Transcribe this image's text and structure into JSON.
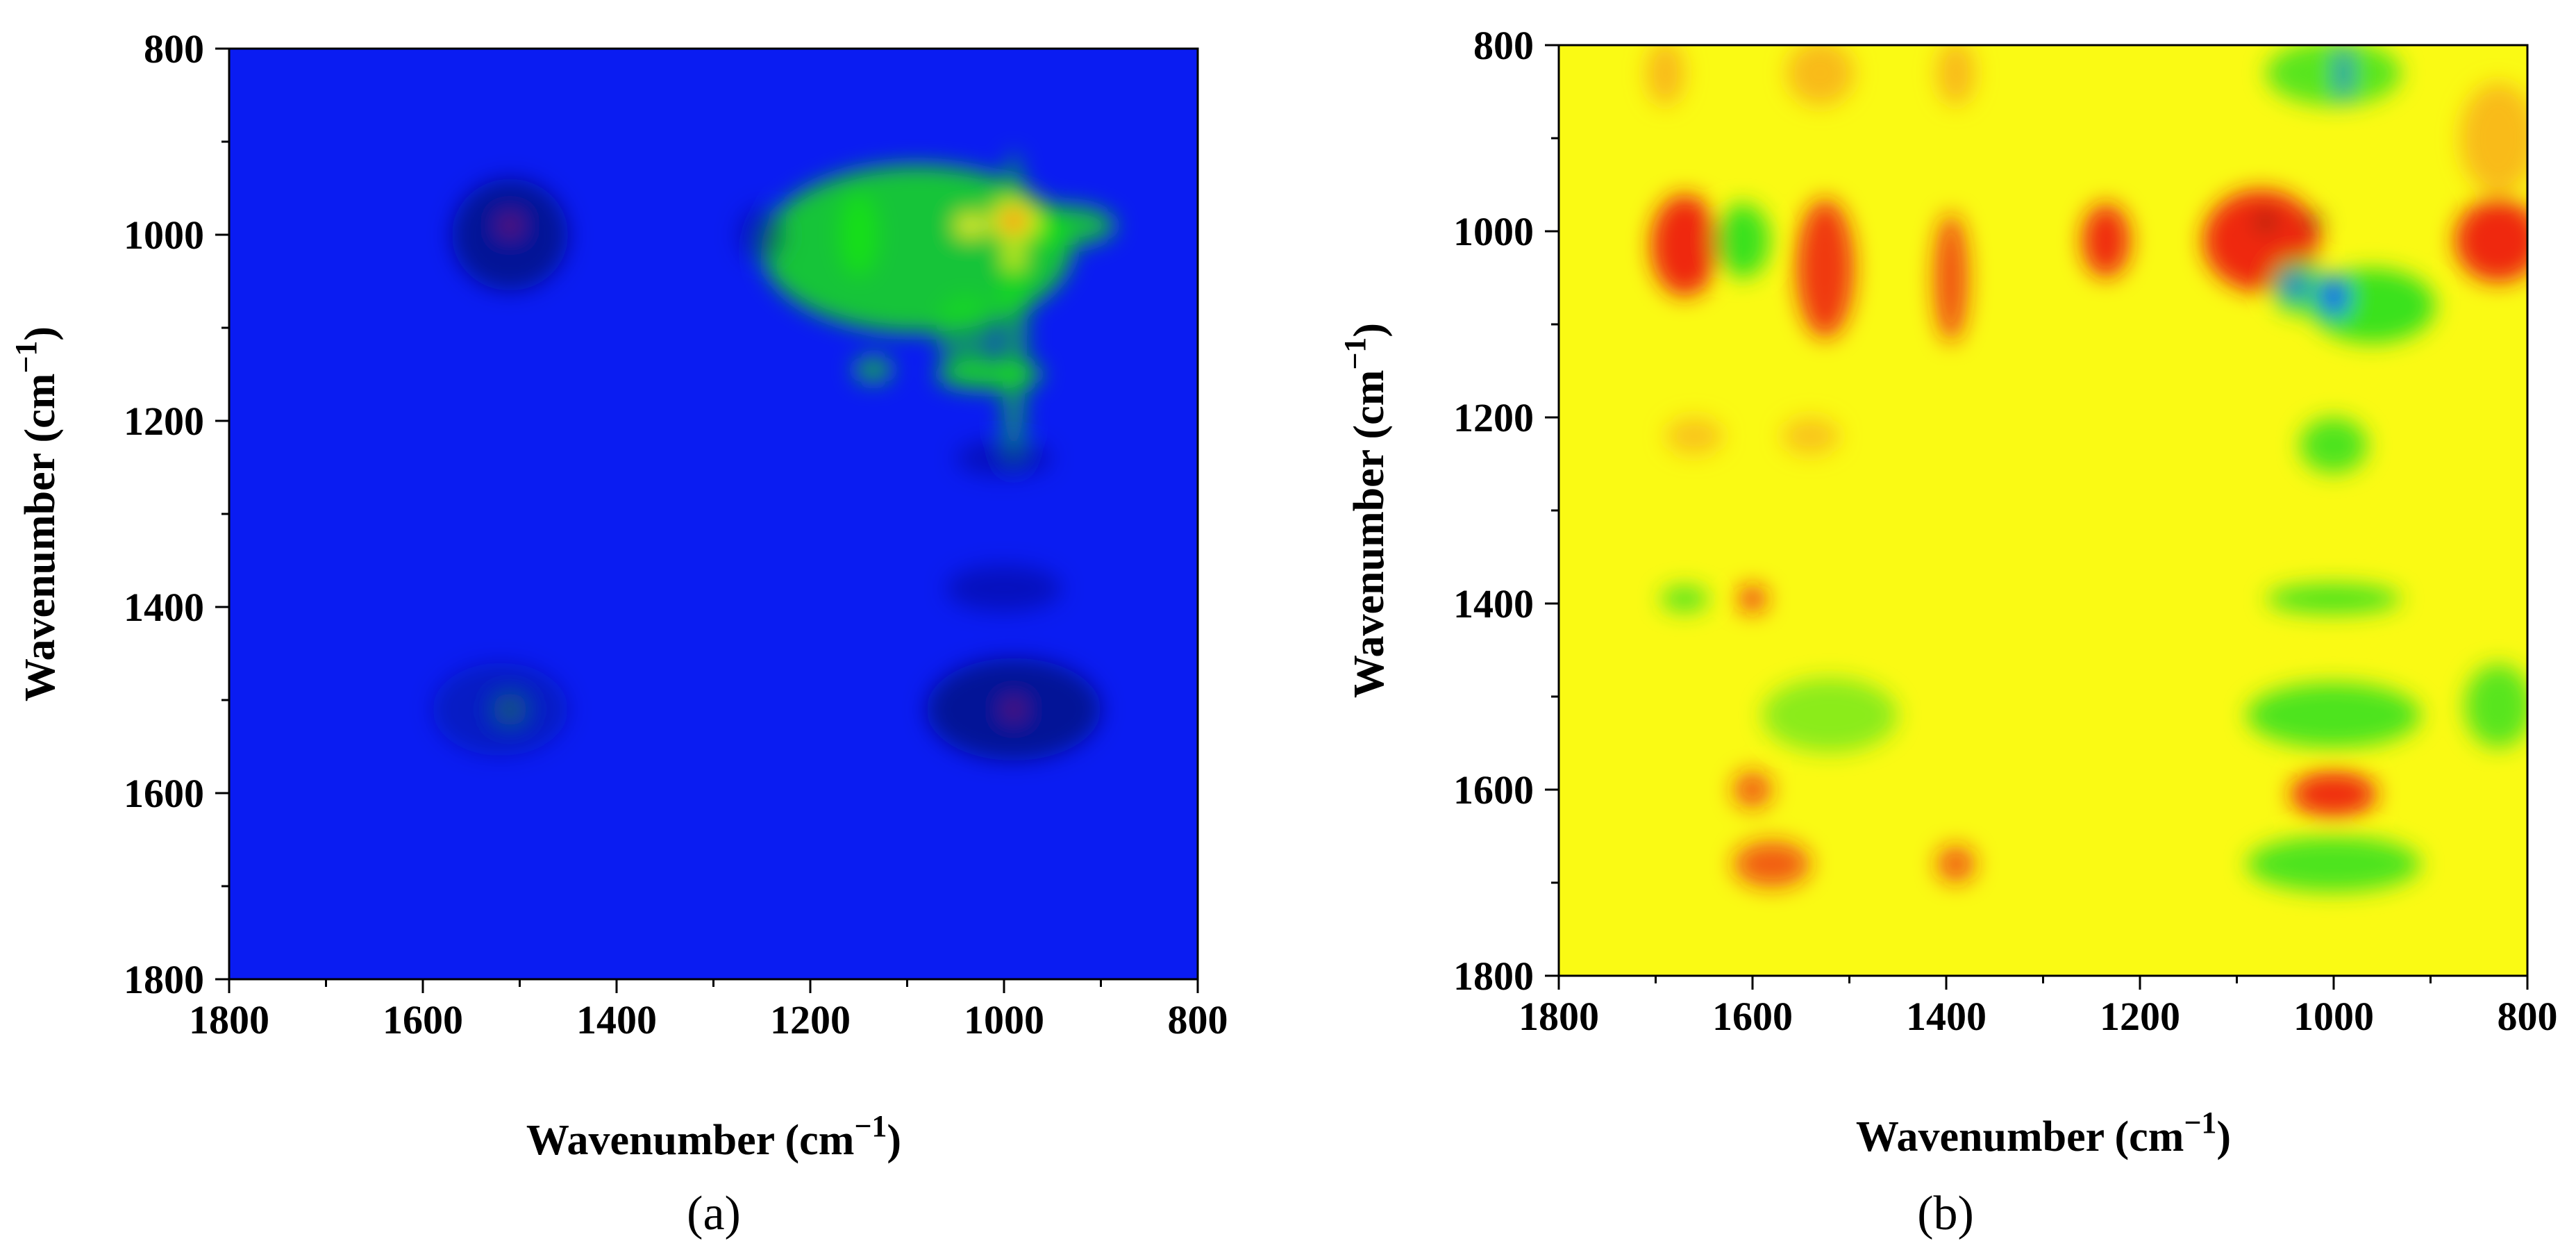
{
  "chart_data": [
    {
      "type": "heatmap",
      "panel_label": "(a)",
      "title": "",
      "xlabel": {
        "text": "Wavenumber (cm",
        "sup": "−1",
        "close": ")"
      },
      "ylabel": {
        "text": "Wavenumber (cm",
        "sup": "−1",
        "close": ")"
      },
      "xlim": [
        1800,
        800
      ],
      "ylim": [
        800,
        1800
      ],
      "y_inverted": true,
      "xticks": [
        1800,
        1600,
        1400,
        1200,
        1000,
        800
      ],
      "yticks": [
        800,
        1000,
        1200,
        1400,
        1600,
        1800
      ],
      "background_color": "#0a1cf2",
      "colors": {
        "background": "#0a1cf2",
        "dark": "#061070",
        "green": "#18e218",
        "yellow": "#f6f31a",
        "red": "#ee1111"
      },
      "features": [
        {
          "x": 1090,
          "y": 1015,
          "wx": 160,
          "wy": 90,
          "color": "#18e218",
          "opacity": 0.85
        },
        {
          "x": 1150,
          "y": 1000,
          "wx": 20,
          "wy": 45,
          "color": "#18e218",
          "opacity": 0.9
        },
        {
          "x": 940,
          "y": 990,
          "wx": 55,
          "wy": 22,
          "color": "#18e218",
          "opacity": 0.8
        },
        {
          "x": 990,
          "y": 1080,
          "wx": 14,
          "wy": 170,
          "color": "#18e218",
          "opacity": 0.6
        },
        {
          "x": 1015,
          "y": 1150,
          "wx": 55,
          "wy": 16,
          "color": "#18e218",
          "opacity": 0.9
        },
        {
          "x": 1135,
          "y": 1145,
          "wx": 20,
          "wy": 14,
          "color": "#18e218",
          "opacity": 0.7
        },
        {
          "x": 1040,
          "y": 1105,
          "wx": 30,
          "wy": 40,
          "color": "#18e218",
          "opacity": 0.55
        },
        {
          "x": 1035,
          "y": 990,
          "wx": 15,
          "wy": 12,
          "color": "#f6f31a",
          "opacity": 1
        },
        {
          "x": 990,
          "y": 985,
          "wx": 24,
          "wy": 22,
          "color": "#f6f31a",
          "opacity": 1
        },
        {
          "x": 990,
          "y": 1025,
          "wx": 10,
          "wy": 10,
          "color": "#f6f31a",
          "opacity": 1
        },
        {
          "x": 990,
          "y": 985,
          "wx": 11,
          "wy": 11,
          "color": "#ee1111",
          "opacity": 1
        },
        {
          "x": 1510,
          "y": 1000,
          "wx": 60,
          "wy": 60,
          "color": "#061070",
          "opacity": 0.7
        },
        {
          "x": 1510,
          "y": 990,
          "wx": 10,
          "wy": 10,
          "color": "#ee1111",
          "opacity": 0.45
        },
        {
          "x": 1510,
          "y": 1510,
          "wx": 18,
          "wy": 18,
          "color": "#18e218",
          "opacity": 0.45
        },
        {
          "x": 990,
          "y": 1510,
          "wx": 90,
          "wy": 55,
          "color": "#061070",
          "opacity": 0.7
        },
        {
          "x": 990,
          "y": 1510,
          "wx": 10,
          "wy": 10,
          "color": "#ee1111",
          "opacity": 0.4
        },
        {
          "x": 1520,
          "y": 1510,
          "wx": 70,
          "wy": 50,
          "color": "#061070",
          "opacity": 0.35
        },
        {
          "x": 1250,
          "y": 1000,
          "wx": 25,
          "wy": 30,
          "color": "#061070",
          "opacity": 0.4
        },
        {
          "x": 1000,
          "y": 1380,
          "wx": 60,
          "wy": 25,
          "color": "#061070",
          "opacity": 0.4
        },
        {
          "x": 1000,
          "y": 1240,
          "wx": 50,
          "wy": 20,
          "color": "#061070",
          "opacity": 0.4
        }
      ]
    },
    {
      "type": "heatmap",
      "panel_label": "(b)",
      "title": "",
      "xlabel": {
        "text": "Wavenumber (cm",
        "sup": "−1",
        "close": ")"
      },
      "ylabel": {
        "text": "Wavenumber (cm",
        "sup": "−1",
        "close": ")"
      },
      "xlim": [
        1800,
        800
      ],
      "ylim": [
        800,
        1800
      ],
      "y_inverted": true,
      "xticks": [
        1800,
        1600,
        1400,
        1200,
        1000,
        800
      ],
      "yticks": [
        800,
        1000,
        1200,
        1400,
        1600,
        1800
      ],
      "background_color": "#fafa14",
      "colors": {
        "background": "#fafa14",
        "orange": "#f8a020",
        "red": "#ee1a10",
        "green": "#30e020",
        "blue": "#1860ee",
        "black": "#301010"
      },
      "features": [
        {
          "x": 1670,
          "y": 1015,
          "wx": 35,
          "wy": 55,
          "color": "#ee1a10",
          "opacity": 0.95
        },
        {
          "x": 1525,
          "y": 1040,
          "wx": 30,
          "wy": 75,
          "color": "#ee1a10",
          "opacity": 0.85
        },
        {
          "x": 1235,
          "y": 1010,
          "wx": 25,
          "wy": 40,
          "color": "#ee1a10",
          "opacity": 0.9
        },
        {
          "x": 1395,
          "y": 1050,
          "wx": 18,
          "wy": 70,
          "color": "#ee1a10",
          "opacity": 0.75
        },
        {
          "x": 1075,
          "y": 1010,
          "wx": 60,
          "wy": 55,
          "color": "#ee1a10",
          "opacity": 0.95
        },
        {
          "x": 830,
          "y": 1010,
          "wx": 45,
          "wy": 45,
          "color": "#ee1a10",
          "opacity": 0.95
        },
        {
          "x": 1610,
          "y": 1010,
          "wx": 28,
          "wy": 40,
          "color": "#30e020",
          "opacity": 0.95
        },
        {
          "x": 960,
          "y": 1080,
          "wx": 65,
          "wy": 40,
          "color": "#30e020",
          "opacity": 0.95
        },
        {
          "x": 1035,
          "y": 1060,
          "wx": 30,
          "wy": 30,
          "color": "#30e020",
          "opacity": 0.85
        },
        {
          "x": 1000,
          "y": 1230,
          "wx": 35,
          "wy": 30,
          "color": "#30e020",
          "opacity": 0.85
        },
        {
          "x": 1000,
          "y": 1395,
          "wx": 70,
          "wy": 16,
          "color": "#30e020",
          "opacity": 0.85
        },
        {
          "x": 1000,
          "y": 1520,
          "wx": 90,
          "wy": 35,
          "color": "#30e020",
          "opacity": 0.85
        },
        {
          "x": 1000,
          "y": 1680,
          "wx": 90,
          "wy": 30,
          "color": "#30e020",
          "opacity": 0.85
        },
        {
          "x": 830,
          "y": 1510,
          "wx": 35,
          "wy": 45,
          "color": "#30e020",
          "opacity": 0.8
        },
        {
          "x": 1670,
          "y": 1395,
          "wx": 25,
          "wy": 14,
          "color": "#30e020",
          "opacity": 0.8
        },
        {
          "x": 1520,
          "y": 1520,
          "wx": 70,
          "wy": 40,
          "color": "#30e020",
          "opacity": 0.55
        },
        {
          "x": 1000,
          "y": 830,
          "wx": 70,
          "wy": 35,
          "color": "#30e020",
          "opacity": 0.8
        },
        {
          "x": 1000,
          "y": 1605,
          "wx": 45,
          "wy": 25,
          "color": "#ee1a10",
          "opacity": 0.9
        },
        {
          "x": 1600,
          "y": 1600,
          "wx": 20,
          "wy": 20,
          "color": "#ee1a10",
          "opacity": 0.7
        },
        {
          "x": 1580,
          "y": 1680,
          "wx": 40,
          "wy": 25,
          "color": "#ee1a10",
          "opacity": 0.7
        },
        {
          "x": 1390,
          "y": 1680,
          "wx": 20,
          "wy": 20,
          "color": "#ee1a10",
          "opacity": 0.7
        },
        {
          "x": 1600,
          "y": 1395,
          "wx": 15,
          "wy": 15,
          "color": "#ee1a10",
          "opacity": 0.8
        },
        {
          "x": 1530,
          "y": 830,
          "wx": 35,
          "wy": 35,
          "color": "#f8a020",
          "opacity": 0.7
        },
        {
          "x": 1390,
          "y": 830,
          "wx": 20,
          "wy": 35,
          "color": "#f8a020",
          "opacity": 0.7
        },
        {
          "x": 1690,
          "y": 830,
          "wx": 20,
          "wy": 35,
          "color": "#f8a020",
          "opacity": 0.7
        },
        {
          "x": 830,
          "y": 900,
          "wx": 40,
          "wy": 60,
          "color": "#f8a020",
          "opacity": 0.7
        },
        {
          "x": 1660,
          "y": 1220,
          "wx": 30,
          "wy": 20,
          "color": "#f8a020",
          "opacity": 0.6
        },
        {
          "x": 1540,
          "y": 1220,
          "wx": 30,
          "wy": 20,
          "color": "#f8a020",
          "opacity": 0.6
        },
        {
          "x": 1000,
          "y": 1070,
          "wx": 16,
          "wy": 22,
          "color": "#1860ee",
          "opacity": 1
        },
        {
          "x": 1040,
          "y": 1060,
          "wx": 14,
          "wy": 14,
          "color": "#1860ee",
          "opacity": 0.9
        },
        {
          "x": 990,
          "y": 830,
          "wx": 8,
          "wy": 30,
          "color": "#1860ee",
          "opacity": 0.8
        },
        {
          "x": 1070,
          "y": 990,
          "wx": 10,
          "wy": 8,
          "color": "#301010",
          "opacity": 0.8
        },
        {
          "x": 1020,
          "y": 990,
          "wx": 10,
          "wy": 8,
          "color": "#301010",
          "opacity": 0.6
        }
      ]
    }
  ]
}
